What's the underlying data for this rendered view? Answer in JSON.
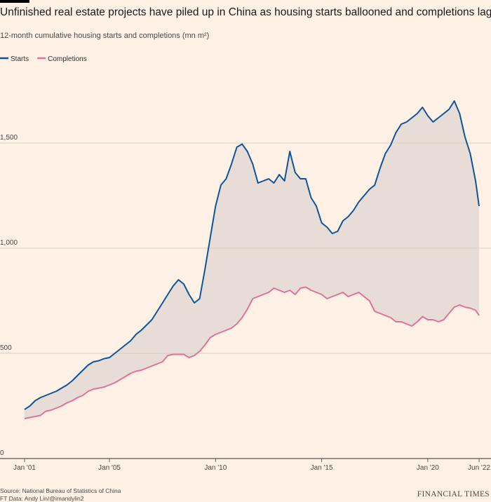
{
  "chart_data": {
    "type": "line",
    "title": "Unfinished real estate projects have piled up in China as housing starts ballooned and completions lagged",
    "subtitle": "12-month cumulative housing starts and completions (mn m²)",
    "source": "Source: National Bureau of Statistics of China",
    "credit": "FT Data: Andy Lin/@imandylin2",
    "brand": "FINANCIAL TIMES",
    "x": [
      "2001-01",
      "2001-04",
      "2001-07",
      "2001-10",
      "2002-01",
      "2002-04",
      "2002-07",
      "2002-10",
      "2003-01",
      "2003-04",
      "2003-07",
      "2003-10",
      "2004-01",
      "2004-04",
      "2004-07",
      "2004-10",
      "2005-01",
      "2005-04",
      "2005-07",
      "2005-10",
      "2006-01",
      "2006-04",
      "2006-07",
      "2006-10",
      "2007-01",
      "2007-04",
      "2007-07",
      "2007-10",
      "2008-01",
      "2008-04",
      "2008-07",
      "2008-10",
      "2009-01",
      "2009-04",
      "2009-07",
      "2009-10",
      "2010-01",
      "2010-04",
      "2010-07",
      "2010-10",
      "2011-01",
      "2011-04",
      "2011-07",
      "2011-10",
      "2012-01",
      "2012-04",
      "2012-07",
      "2012-10",
      "2013-01",
      "2013-04",
      "2013-07",
      "2013-10",
      "2014-01",
      "2014-04",
      "2014-07",
      "2014-10",
      "2015-01",
      "2015-04",
      "2015-07",
      "2015-10",
      "2016-01",
      "2016-04",
      "2016-07",
      "2016-10",
      "2017-01",
      "2017-04",
      "2017-07",
      "2017-10",
      "2018-01",
      "2018-04",
      "2018-07",
      "2018-10",
      "2019-01",
      "2019-04",
      "2019-07",
      "2019-10",
      "2020-01",
      "2020-04",
      "2020-07",
      "2020-10",
      "2021-01",
      "2021-04",
      "2021-07",
      "2021-10",
      "2022-01",
      "2022-04",
      "2022-06"
    ],
    "series": [
      {
        "name": "Starts",
        "color": "#0f5499",
        "values": [
          233,
          250,
          275,
          290,
          300,
          310,
          320,
          335,
          350,
          370,
          395,
          420,
          445,
          460,
          465,
          475,
          480,
          500,
          520,
          540,
          560,
          590,
          610,
          635,
          660,
          700,
          740,
          780,
          820,
          850,
          830,
          780,
          740,
          760,
          900,
          1050,
          1200,
          1300,
          1330,
          1400,
          1480,
          1495,
          1460,
          1400,
          1310,
          1320,
          1330,
          1310,
          1350,
          1320,
          1460,
          1360,
          1330,
          1330,
          1240,
          1200,
          1120,
          1100,
          1070,
          1080,
          1130,
          1150,
          1180,
          1220,
          1250,
          1280,
          1300,
          1380,
          1450,
          1490,
          1550,
          1590,
          1600,
          1620,
          1640,
          1670,
          1630,
          1600,
          1620,
          1640,
          1660,
          1700,
          1640,
          1530,
          1450,
          1320,
          1200
        ]
      },
      {
        "name": "Completions",
        "color": "#e0729a",
        "values": [
          190,
          195,
          200,
          205,
          225,
          230,
          240,
          250,
          265,
          275,
          290,
          300,
          320,
          330,
          335,
          340,
          350,
          360,
          375,
          390,
          405,
          415,
          420,
          430,
          440,
          450,
          460,
          490,
          495,
          495,
          495,
          480,
          490,
          510,
          540,
          575,
          590,
          600,
          610,
          620,
          640,
          670,
          710,
          760,
          770,
          780,
          790,
          810,
          800,
          790,
          800,
          780,
          810,
          815,
          800,
          790,
          780,
          760,
          770,
          780,
          790,
          770,
          780,
          790,
          770,
          750,
          700,
          690,
          680,
          670,
          650,
          650,
          640,
          630,
          650,
          675,
          660,
          660,
          650,
          660,
          690,
          720,
          730,
          720,
          715,
          705,
          680
        ]
      }
    ],
    "fill_between": "#e7ddd6",
    "xlim": [
      "2001-01",
      "2022-06"
    ],
    "xticks": [
      {
        "value": "2001-01",
        "label": "Jan '01"
      },
      {
        "value": "2005-01",
        "label": "Jan '05"
      },
      {
        "value": "2010-01",
        "label": "Jan '10"
      },
      {
        "value": "2015-01",
        "label": "Jan '15"
      },
      {
        "value": "2020-01",
        "label": "Jan '20"
      },
      {
        "value": "2022-06",
        "label": "Jun '22"
      }
    ],
    "ylim": [
      0,
      1830
    ],
    "yticks": [
      0,
      500,
      {
        "value": 1000,
        "label": "1,000"
      },
      {
        "value": 1500,
        "label": "1,500"
      }
    ],
    "grid": true
  }
}
